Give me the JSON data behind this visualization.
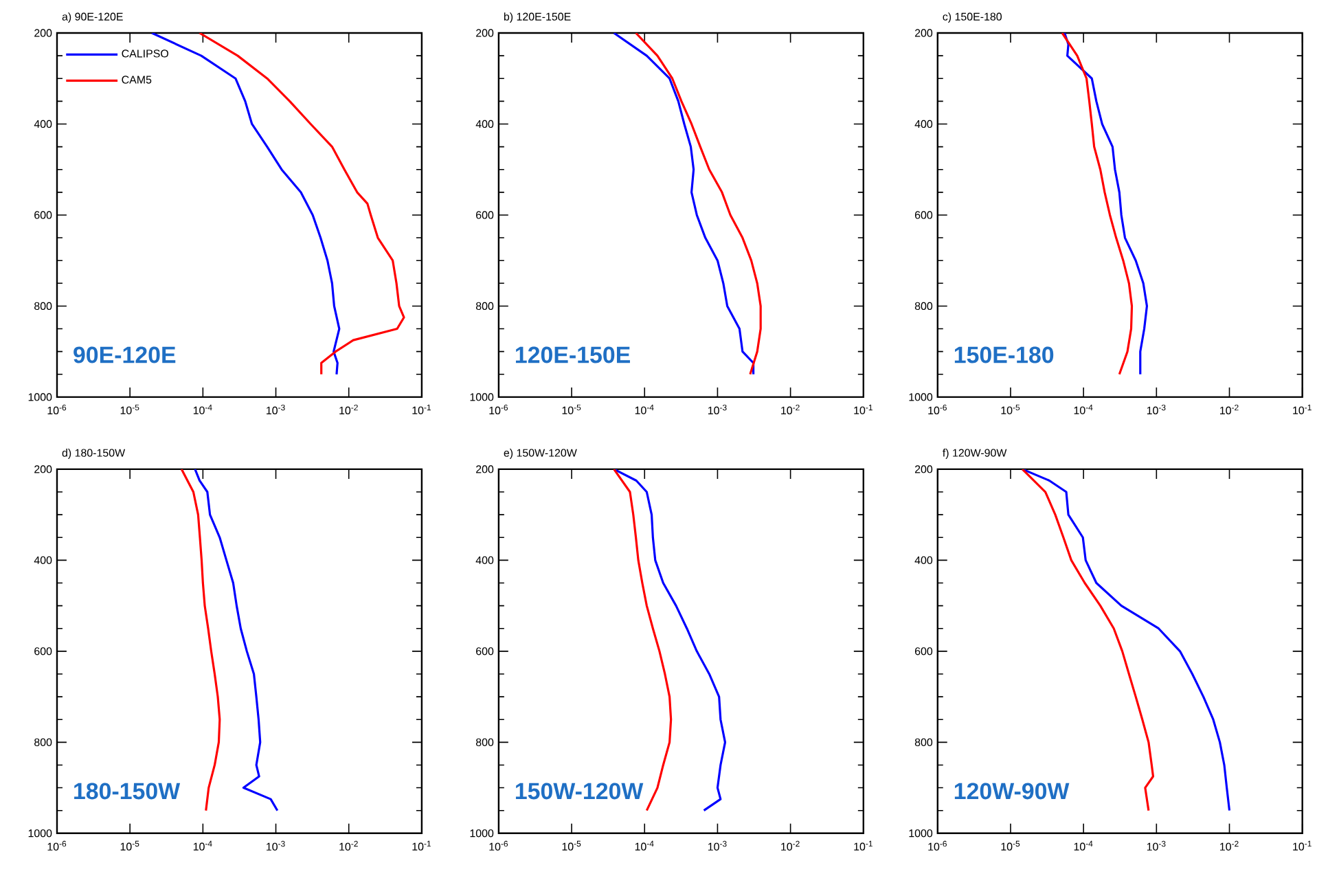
{
  "chart_data": [
    {
      "type": "line",
      "title": "a) 90E-120E",
      "annotations": [
        "90E-120E"
      ],
      "legend": "top left",
      "xlim": [
        1e-06,
        0.1
      ],
      "ylim": [
        1000,
        200
      ],
      "xticks": [
        {
          "value": 1e-06,
          "label": "10$^{-6}$"
        },
        {
          "value": 1e-05,
          "label": "10$^{-5}$"
        },
        {
          "value": 0.0001,
          "label": "10$^{-4}$"
        },
        {
          "value": 0.001,
          "label": "10$^{-3}$"
        },
        {
          "value": 0.01,
          "label": "10$^{-2}$"
        },
        {
          "value": 0.1,
          "label": "10$^{-1}$"
        }
      ],
      "yticks": [
        200,
        400,
        600,
        800,
        1000
      ],
      "log": "x",
      "series": [
        {
          "name": "CALIPSO",
          "color": "#0000ff",
          "x": [
            2e-05,
            9.5e-05,
            0.00028,
            0.00038,
            0.00047,
            0.00076,
            0.0012,
            0.0022,
            0.0032,
            0.0041,
            0.0051,
            0.0059,
            0.0063,
            0.0074,
            0.0062,
            0.007,
            0.0068
          ],
          "values": [
            200,
            250,
            300,
            350,
            400,
            450,
            500,
            550,
            600,
            650,
            700,
            750,
            800,
            850,
            900,
            925,
            950
          ]
        },
        {
          "name": "CAM5",
          "color": "#ff0000",
          "x": [
            9e-05,
            0.0003,
            0.00076,
            0.00155,
            0.003,
            0.0059,
            0.0087,
            0.013,
            0.018,
            0.02,
            0.025,
            0.04,
            0.045,
            0.049,
            0.057,
            0.046,
            0.0115,
            0.0066,
            0.0042,
            0.0042
          ],
          "values": [
            200,
            250,
            300,
            350,
            400,
            450,
            500,
            550,
            575,
            600,
            650,
            700,
            750,
            800,
            825,
            850,
            875,
            900,
            925,
            950
          ]
        }
      ]
    },
    {
      "type": "line",
      "title": "b) 120E-150E",
      "annotations": [
        "120E-150E"
      ],
      "xlim": [
        1e-06,
        0.1
      ],
      "ylim": [
        1000,
        200
      ],
      "xticks": [
        {
          "value": 1e-06,
          "label": "10$^{-6}$"
        },
        {
          "value": 1e-05,
          "label": "10$^{-5}$"
        },
        {
          "value": 0.0001,
          "label": "10$^{-4}$"
        },
        {
          "value": 0.001,
          "label": "10$^{-3}$"
        },
        {
          "value": 0.01,
          "label": "10$^{-2}$"
        },
        {
          "value": 0.1,
          "label": "10$^{-1}$"
        }
      ],
      "yticks": [
        200,
        400,
        600,
        800,
        1000
      ],
      "log": "x",
      "series": [
        {
          "color": "#0000ff",
          "x": [
            3.8e-05,
            0.000107,
            0.00022,
            0.00029,
            0.00035,
            0.00043,
            0.00047,
            0.00044,
            0.00052,
            0.00068,
            0.001,
            0.0012,
            0.00136,
            0.002,
            0.0022,
            0.0031,
            0.0031
          ],
          "values": [
            200,
            250,
            300,
            350,
            400,
            450,
            500,
            550,
            600,
            650,
            700,
            750,
            800,
            850,
            900,
            925,
            950
          ]
        },
        {
          "color": "#ff0000",
          "x": [
            7.6e-05,
            0.00015,
            0.00024,
            0.00032,
            0.00044,
            0.00058,
            0.00077,
            0.00115,
            0.0015,
            0.0022,
            0.0029,
            0.0035,
            0.0039,
            0.0039,
            0.0035,
            0.0028
          ],
          "values": [
            200,
            250,
            300,
            350,
            400,
            450,
            500,
            550,
            600,
            650,
            700,
            750,
            800,
            850,
            900,
            950
          ]
        }
      ]
    },
    {
      "type": "line",
      "title": "c) 150E-180",
      "annotations": [
        "150E-180"
      ],
      "xlim": [
        1e-06,
        0.1
      ],
      "ylim": [
        1000,
        200
      ],
      "xticks": [
        {
          "value": 1e-06,
          "label": "10$^{-6}$"
        },
        {
          "value": 1e-05,
          "label": "10$^{-5}$"
        },
        {
          "value": 0.0001,
          "label": "10$^{-4}$"
        },
        {
          "value": 0.001,
          "label": "10$^{-3}$"
        },
        {
          "value": 0.01,
          "label": "10$^{-2}$"
        },
        {
          "value": 0.1,
          "label": "10$^{-1}$"
        }
      ],
      "yticks": [
        200,
        400,
        600,
        800,
        1000
      ],
      "log": "x",
      "series": [
        {
          "color": "#0000ff",
          "x": [
            5.5e-05,
            6.2e-05,
            6e-05,
            0.00013,
            0.00015,
            0.00018,
            0.00025,
            0.00027,
            0.00031,
            0.00033,
            0.00037,
            0.00052,
            0.00066,
            0.00074,
            0.00068,
            0.0006,
            0.0006
          ],
          "values": [
            200,
            225,
            250,
            300,
            350,
            400,
            450,
            500,
            550,
            600,
            650,
            700,
            750,
            800,
            850,
            900,
            950
          ]
        },
        {
          "color": "#ff0000",
          "x": [
            5.1e-05,
            8.2e-05,
            0.00011,
            0.00012,
            0.00013,
            0.00014,
            0.00017,
            0.000195,
            0.00023,
            0.00028,
            0.00035,
            0.00042,
            0.00046,
            0.00045,
            0.0004,
            0.00031
          ],
          "values": [
            200,
            250,
            300,
            350,
            400,
            450,
            500,
            550,
            600,
            650,
            700,
            750,
            800,
            850,
            900,
            950
          ]
        }
      ]
    },
    {
      "type": "line",
      "title": "d) 180-150W",
      "annotations": [
        "180-150W"
      ],
      "xlim": [
        1e-06,
        0.1
      ],
      "ylim": [
        1000,
        200
      ],
      "xticks": [
        {
          "value": 1e-06,
          "label": "10$^{-6}$"
        },
        {
          "value": 1e-05,
          "label": "10$^{-5}$"
        },
        {
          "value": 0.0001,
          "label": "10$^{-4}$"
        },
        {
          "value": 0.001,
          "label": "10$^{-3}$"
        },
        {
          "value": 0.01,
          "label": "10$^{-2}$"
        },
        {
          "value": 0.1,
          "label": "10$^{-1}$"
        }
      ],
      "yticks": [
        200,
        400,
        600,
        800,
        1000
      ],
      "log": "x",
      "series": [
        {
          "color": "#0000ff",
          "x": [
            7.8e-05,
            9e-05,
            0.000115,
            0.000125,
            0.00017,
            0.00021,
            0.00026,
            0.00029,
            0.00033,
            0.0004,
            0.0005,
            0.00054,
            0.00058,
            0.00061,
            0.00054,
            0.00059,
            0.00036,
            0.00085,
            0.00105
          ],
          "values": [
            200,
            225,
            250,
            300,
            350,
            400,
            450,
            500,
            550,
            600,
            650,
            700,
            750,
            800,
            850,
            875,
            900,
            925,
            950
          ]
        },
        {
          "color": "#ff0000",
          "x": [
            5.1e-05,
            7.4e-05,
            8.6e-05,
            9.1e-05,
            9.6e-05,
            0.0001,
            0.000106,
            0.000118,
            0.00013,
            0.000145,
            0.00016,
            0.00017,
            0.000165,
            0.000145,
            0.00012,
            0.00011
          ],
          "values": [
            200,
            250,
            300,
            350,
            400,
            450,
            500,
            550,
            600,
            650,
            700,
            750,
            800,
            850,
            900,
            950
          ]
        }
      ]
    },
    {
      "type": "line",
      "title": "e) 150W-120W",
      "annotations": [
        "150W-120W"
      ],
      "xlim": [
        1e-06,
        0.1
      ],
      "ylim": [
        1000,
        200
      ],
      "xticks": [
        {
          "value": 1e-06,
          "label": "10$^{-6}$"
        },
        {
          "value": 1e-05,
          "label": "10$^{-5}$"
        },
        {
          "value": 0.0001,
          "label": "10$^{-4}$"
        },
        {
          "value": 0.001,
          "label": "10$^{-3}$"
        },
        {
          "value": 0.01,
          "label": "10$^{-2}$"
        },
        {
          "value": 0.1,
          "label": "10$^{-1}$"
        }
      ],
      "yticks": [
        200,
        400,
        600,
        800,
        1000
      ],
      "log": "x",
      "series": [
        {
          "color": "#0000ff",
          "x": [
            3.8e-05,
            7.7e-05,
            0.000107,
            0.000125,
            0.00013,
            0.00014,
            0.00018,
            0.00027,
            0.00038,
            0.00052,
            0.00077,
            0.00105,
            0.0011,
            0.00127,
            0.0011,
            0.001,
            0.0011,
            0.00065
          ],
          "values": [
            200,
            225,
            250,
            300,
            350,
            400,
            450,
            500,
            550,
            600,
            650,
            700,
            750,
            800,
            850,
            900,
            925,
            950
          ]
        },
        {
          "color": "#ff0000",
          "x": [
            3.8e-05,
            6.3e-05,
            7e-05,
            7.6e-05,
            8.2e-05,
            9.3e-05,
            0.000107,
            0.00013,
            0.00016,
            0.00019,
            0.00022,
            0.00023,
            0.00022,
            0.00018,
            0.00015,
            0.000107
          ],
          "values": [
            200,
            250,
            300,
            350,
            400,
            450,
            500,
            550,
            600,
            650,
            700,
            750,
            800,
            850,
            900,
            950
          ]
        }
      ]
    },
    {
      "type": "line",
      "title": "f) 120W-90W",
      "annotations": [
        "120W-90W"
      ],
      "xlim": [
        1e-06,
        0.1
      ],
      "ylim": [
        1000,
        200
      ],
      "xticks": [
        {
          "value": 1e-06,
          "label": "10$^{-6}$"
        },
        {
          "value": 1e-05,
          "label": "10$^{-5}$"
        },
        {
          "value": 0.0001,
          "label": "10$^{-4}$"
        },
        {
          "value": 0.001,
          "label": "10$^{-3}$"
        },
        {
          "value": 0.01,
          "label": "10$^{-2}$"
        },
        {
          "value": 0.1,
          "label": "10$^{-1}$"
        }
      ],
      "yticks": [
        200,
        400,
        600,
        800,
        1000
      ],
      "log": "x",
      "series": [
        {
          "color": "#0000ff",
          "x": [
            1.45e-05,
            3.4e-05,
            5.8e-05,
            6.2e-05,
            9.8e-05,
            0.000107,
            0.00015,
            0.00033,
            0.00107,
            0.0021,
            0.0031,
            0.0044,
            0.006,
            0.0074,
            0.0085,
            0.0092,
            0.01
          ],
          "values": [
            200,
            225,
            250,
            300,
            350,
            400,
            450,
            500,
            550,
            600,
            650,
            700,
            750,
            800,
            850,
            900,
            950
          ]
        },
        {
          "color": "#ff0000",
          "x": [
            1.45e-05,
            3e-05,
            4.1e-05,
            5.3e-05,
            6.8e-05,
            0.000104,
            0.00017,
            0.00026,
            0.00034,
            0.00042,
            0.00052,
            0.00064,
            0.00078,
            0.00086,
            0.0009,
            0.0007,
            0.00078
          ],
          "values": [
            200,
            250,
            300,
            350,
            400,
            450,
            500,
            550,
            600,
            650,
            700,
            750,
            800,
            850,
            875,
            900,
            950
          ]
        }
      ]
    }
  ]
}
